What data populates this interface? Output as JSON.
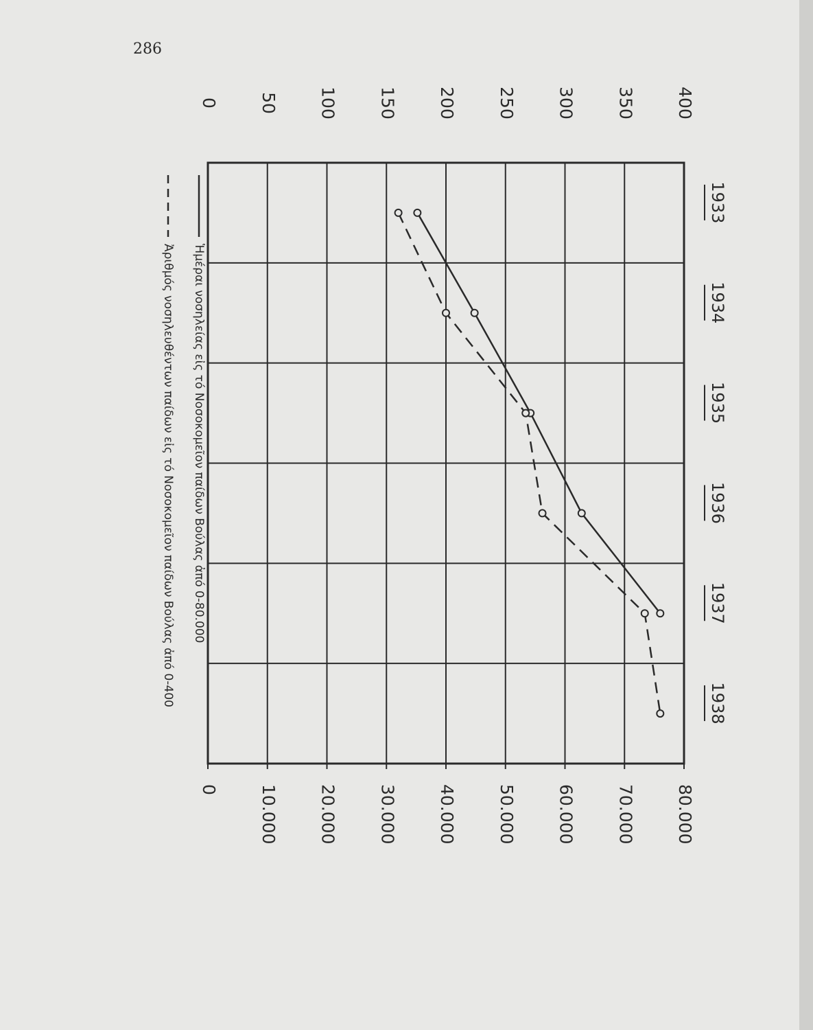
{
  "page_number": "286",
  "chart_data": {
    "type": "line",
    "categories": [
      "1933",
      "1934",
      "1935",
      "1936",
      "1937",
      "1938"
    ],
    "series": [
      {
        "name": "Ἡμέραι νοσηλείας εἰς τό Νοσοκομεῖον παίδων Βούλας ἀπό 0-80.000",
        "color": "#2a2a2a",
        "dash": false,
        "axis": "y2",
        "values": [
          35200,
          44800,
          54200,
          62800,
          76000,
          null
        ]
      },
      {
        "name": "Ἀριθμός νοσηλευθέντων παίδων εἰς τό Νοσοκομεῖον παίδων Βούλας ἀπό 0-400",
        "color": "#2a2a2a",
        "dash": true,
        "values": [
          160,
          200,
          267,
          281,
          367,
          380
        ]
      }
    ],
    "ylim": [
      0,
      400
    ],
    "yticks": [
      0,
      50,
      100,
      150,
      200,
      250,
      300,
      350,
      400
    ],
    "y2lim": [
      0,
      80000
    ],
    "y2ticks": [
      0,
      {
        "value": 10000,
        "label": "10.000"
      },
      {
        "value": 20000,
        "label": "20.000"
      },
      {
        "value": 30000,
        "label": "30.000"
      },
      {
        "value": 40000,
        "label": "40.000"
      },
      {
        "value": 50000,
        "label": "50.000"
      },
      {
        "value": 60000,
        "label": "60.000"
      },
      {
        "value": 70000,
        "label": "70.000"
      },
      {
        "value": 80000,
        "label": "80.000"
      }
    ],
    "grid": true
  }
}
